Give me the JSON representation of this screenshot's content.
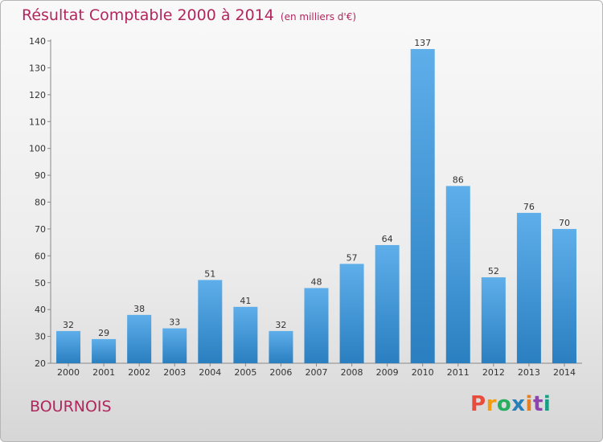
{
  "header": {
    "title": "Résultat Comptable 2000 à 2014",
    "subtitle": "(en milliers d'€)"
  },
  "place": "BOURNOIS",
  "logo": {
    "text": "Proxiti",
    "colors": [
      "#e74c3c",
      "#f39c12",
      "#27ae60",
      "#2980b9",
      "#e67e22",
      "#8e44ad",
      "#16a085"
    ]
  },
  "colors": {
    "accent": "#b0265d",
    "bar_light": "#5eaeea",
    "bar_dark": "#2a7fc0"
  },
  "chart_data": {
    "type": "bar",
    "title": "Résultat Comptable 2000 à 2014",
    "xlabel": "",
    "ylabel": "(en milliers d'€)",
    "ylim": [
      20,
      140
    ],
    "yticks": [
      20,
      30,
      40,
      50,
      60,
      70,
      80,
      90,
      100,
      110,
      120,
      130,
      140
    ],
    "categories": [
      "2000",
      "2001",
      "2002",
      "2003",
      "2004",
      "2005",
      "2006",
      "2007",
      "2008",
      "2009",
      "2010",
      "2011",
      "2012",
      "2013",
      "2014"
    ],
    "values": [
      32,
      29,
      38,
      33,
      51,
      41,
      32,
      48,
      57,
      64,
      137,
      86,
      52,
      76,
      70
    ],
    "grid": false,
    "legend": "none"
  }
}
